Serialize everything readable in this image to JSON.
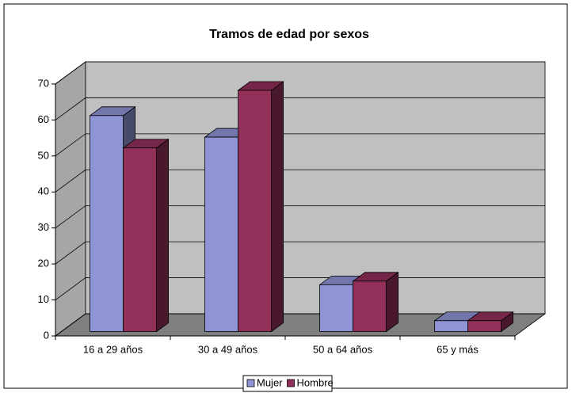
{
  "chart_data": {
    "type": "bar3d",
    "title": "Tramos de edad por sexos",
    "categories": [
      "16 a 29 años",
      "30 a 49 años",
      "50 a 64 años",
      "65 y más"
    ],
    "series": [
      {
        "name": "Mujer",
        "color": "#8f94d6",
        "values": [
          60,
          54,
          13,
          3
        ]
      },
      {
        "name": "Hombre",
        "color": "#93305a",
        "values": [
          51,
          67,
          14,
          3
        ]
      }
    ],
    "ylim": [
      0,
      70
    ],
    "yticks": [
      0,
      10,
      20,
      30,
      40,
      50,
      60,
      70
    ],
    "grid": true,
    "legend": "bottom"
  }
}
